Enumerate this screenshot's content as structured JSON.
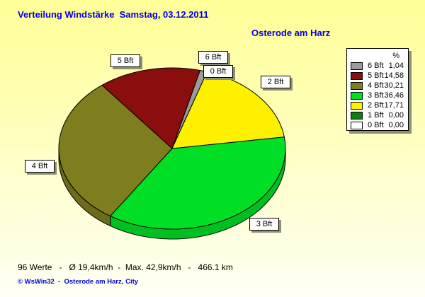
{
  "header": {
    "title": "Verteilung Windstärke  Samstag, 03.12.2011",
    "location": "Osterode am Harz"
  },
  "chart_data": {
    "type": "pie",
    "title": "Verteilung Windstärke",
    "date": "Samstag, 03.12.2011",
    "location": "Osterode am Harz",
    "style": "3d-pie",
    "unit": "%",
    "legend_position": "top-right",
    "start_angle_deg": 72,
    "direction": "ccw",
    "slices": [
      {
        "label": "6 Bft",
        "value": 1.04,
        "display": "1,04",
        "color": "#9c9c9c"
      },
      {
        "label": "5 Bft",
        "value": 14.58,
        "display": "14,58",
        "color": "#8b0e0e"
      },
      {
        "label": "4 Bft",
        "value": 30.21,
        "display": "30,21",
        "color": "#7e7e1e"
      },
      {
        "label": "3 Bft",
        "value": 36.46,
        "display": "36,46",
        "color": "#00df26"
      },
      {
        "label": "2 Bft",
        "value": 17.71,
        "display": "17,71",
        "color": "#fff000"
      },
      {
        "label": "1 Bft",
        "value": 0.0,
        "display": "0,00",
        "color": "#0e7e0e"
      },
      {
        "label": "0 Bft",
        "value": 0.0,
        "display": "0,00",
        "color": "#ffffff"
      }
    ]
  },
  "legend": {
    "header": "%"
  },
  "footer": {
    "stats": "96 Werte   -   Ø 19,4km/h  -  Max. 42,9km/h   -   466.1 km",
    "copyright": "© WsWin32  -  Osterode am Harz, City"
  }
}
